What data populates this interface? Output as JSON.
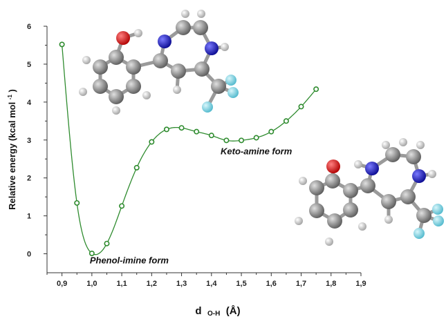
{
  "chart_data": {
    "type": "scatter",
    "title": "",
    "xlabel_main": "d",
    "xlabel_sub": "O-H",
    "xlabel_unit": "(Å)",
    "ylabel": "Relative energy (kcal mol",
    "ylabel_sup": "-1",
    "ylabel_close": ")",
    "xlim": [
      0.85,
      1.9
    ],
    "ylim": [
      -0.5,
      6.0
    ],
    "xticks": [
      "0,9",
      "1,0",
      "1,1",
      "1,2",
      "1,3",
      "1,4",
      "1,5",
      "1,6",
      "1,7",
      "1,8",
      "1,9"
    ],
    "yticks": [
      "0",
      "1",
      "2",
      "3",
      "4",
      "5",
      "6"
    ],
    "grid": false,
    "series": [
      {
        "color": "#2e8b2e",
        "x": [
          0.9,
          0.95,
          1.0,
          1.05,
          1.1,
          1.15,
          1.2,
          1.25,
          1.3,
          1.35,
          1.4,
          1.45,
          1.5,
          1.55,
          1.6,
          1.65,
          1.7,
          1.75
        ],
        "y": [
          5.52,
          1.34,
          0.01,
          0.27,
          1.26,
          2.27,
          2.95,
          3.28,
          3.32,
          3.22,
          3.12,
          2.99,
          2.99,
          3.06,
          3.22,
          3.5,
          3.88,
          4.34
        ]
      }
    ],
    "annotations": [
      {
        "text": "Keto-amine form",
        "x": 1.55,
        "y": 2.62
      },
      {
        "text": "Phenol-imine form",
        "x": 1.125,
        "y": -0.25
      }
    ]
  },
  "molecule_colors": {
    "carbon": "#8a8a8a",
    "hydrogen": "#d8d8d8",
    "oxygen": "#e00000",
    "nitrogen": "#1a1ad0",
    "fluorine": "#7fd8e8"
  }
}
